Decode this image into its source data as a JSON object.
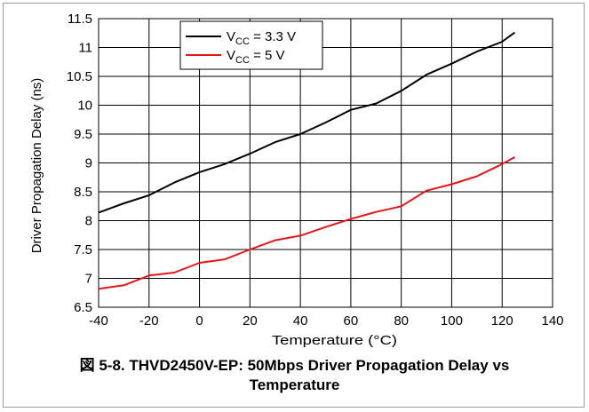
{
  "chart_data": {
    "type": "line",
    "xlabel": "Temperature (°C)",
    "ylabel": "Driver Propagation Delay (ns)",
    "xlim": [
      -40,
      140
    ],
    "ylim": [
      6.5,
      11.5
    ],
    "xticks": [
      -40,
      -20,
      0,
      20,
      40,
      60,
      80,
      100,
      120,
      140
    ],
    "yticks": [
      6.5,
      7,
      7.5,
      8,
      8.5,
      9,
      9.5,
      10,
      10.5,
      11,
      11.5
    ],
    "grid": true,
    "legend_position": "top-center",
    "series": [
      {
        "name": "VCC = 3.3 V",
        "label_main": "V",
        "label_sub": "CC",
        "label_rest": " = 3.3 V",
        "color": "#000000",
        "x": [
          -40,
          -30,
          -20,
          -10,
          0,
          10,
          20,
          30,
          40,
          50,
          60,
          70,
          80,
          90,
          100,
          110,
          120,
          125
        ],
        "y": [
          8.14,
          8.3,
          8.44,
          8.66,
          8.84,
          8.98,
          9.16,
          9.36,
          9.5,
          9.7,
          9.92,
          10.03,
          10.25,
          10.53,
          10.72,
          10.93,
          11.1,
          11.26
        ]
      },
      {
        "name": "VCC = 5 V",
        "label_main": "V",
        "label_sub": "CC",
        "label_rest": " = 5 V",
        "color": "#e8141c",
        "x": [
          -40,
          -30,
          -20,
          -10,
          0,
          10,
          20,
          30,
          40,
          50,
          60,
          70,
          80,
          90,
          100,
          110,
          120,
          125
        ],
        "y": [
          6.82,
          6.88,
          7.05,
          7.1,
          7.27,
          7.33,
          7.5,
          7.66,
          7.74,
          7.89,
          8.03,
          8.15,
          8.25,
          8.52,
          8.63,
          8.77,
          8.98,
          9.1
        ]
      }
    ]
  },
  "caption": {
    "line1": "図 5-8. THVD2450V-EP: 50Mbps Driver Propagation Delay vs",
    "line2": "Temperature"
  }
}
